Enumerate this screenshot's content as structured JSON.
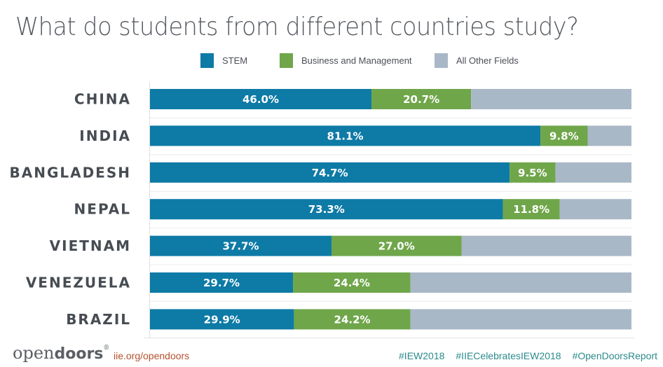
{
  "chart_data": {
    "type": "bar",
    "orientation": "horizontal",
    "stacked": true,
    "title": "What do students from different countries study?",
    "xlabel": "",
    "ylabel": "",
    "xlim": [
      0,
      100
    ],
    "grid": false,
    "legend_position": "top-center",
    "categories": [
      "CHINA",
      "INDIA",
      "BANGLADESH",
      "NEPAL",
      "VIETNAM",
      "VENEZUELA",
      "BRAZIL"
    ],
    "series": [
      {
        "name": "STEM",
        "color": "#0e7aa6",
        "values": [
          46.0,
          81.1,
          74.7,
          73.3,
          37.7,
          29.7,
          29.9
        ],
        "labels": [
          "46.0%",
          "81.1%",
          "74.7%",
          "73.3%",
          "37.7%",
          "29.7%",
          "29.9%"
        ]
      },
      {
        "name": "Business and Management",
        "color": "#6fa64a",
        "values": [
          20.7,
          9.8,
          9.5,
          11.8,
          27.0,
          24.4,
          24.2
        ],
        "labels": [
          "20.7%",
          "9.8%",
          "9.5%",
          "11.8%",
          "27.0%",
          "24.4%",
          "24.2%"
        ]
      },
      {
        "name": "All Other Fields",
        "color": "#a9b8c6",
        "values": [
          33.3,
          9.1,
          15.8,
          14.9,
          35.3,
          45.9,
          45.9
        ],
        "labels": []
      }
    ]
  },
  "legend": [
    {
      "label": "STEM",
      "color": "#0e7aa6"
    },
    {
      "label": "Business and Management",
      "color": "#6fa64a"
    },
    {
      "label": "All Other Fields",
      "color": "#a9b8c6"
    }
  ],
  "footer": {
    "logo_light": "open",
    "logo_bold": "doors",
    "logo_mark": "®",
    "url": "iie.org/opendoors",
    "hashtags": [
      "#IEW2018",
      "#IIECelebratesIEW2018",
      "#OpenDoorsReport"
    ]
  }
}
